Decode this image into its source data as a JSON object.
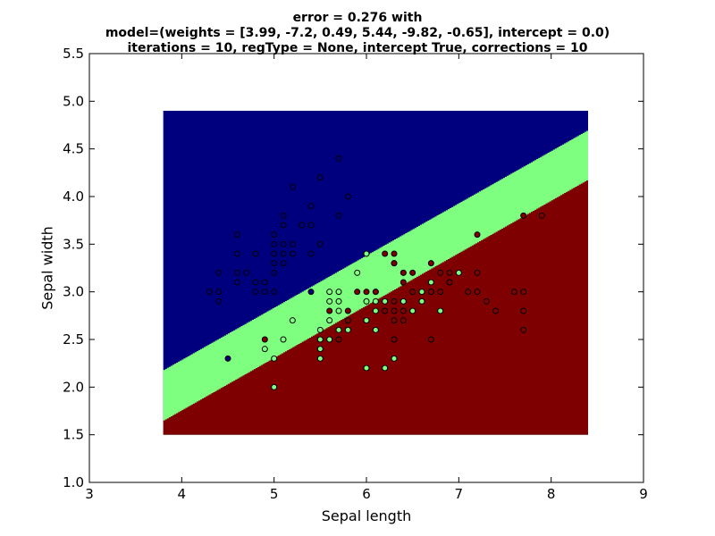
{
  "chart_data": {
    "type": "scatter",
    "title_lines": [
      "error = 0.276 with",
      "model=(weights = [3.99, -7.2, 0.49, 5.44, -9.82, -0.65], intercept = 0.0)",
      "iterations = 10, regType = None, intercept True, corrections = 10"
    ],
    "xlabel": "Sepal length",
    "ylabel": "Sepal width",
    "xlim": [
      3,
      9
    ],
    "ylim": [
      1.0,
      5.5
    ],
    "xticks": [
      "3",
      "4",
      "5",
      "6",
      "7",
      "8",
      "9"
    ],
    "yticks": [
      "1.0",
      "1.5",
      "2.0",
      "2.5",
      "3.0",
      "3.5",
      "4.0",
      "4.5",
      "5.0",
      "5.5"
    ],
    "grid": false,
    "decision_region": {
      "x_range": [
        3.8,
        8.4
      ],
      "y_range": [
        1.5,
        4.9
      ],
      "boundary_low": {
        "left_y": 1.65,
        "right_y": 4.18
      },
      "boundary_high": {
        "left_y": 2.18,
        "right_y": 4.7
      }
    },
    "class_colors": {
      "0": "#00007f",
      "1": "#7fff7f",
      "2": "#7f0000"
    },
    "points": [
      {
        "x": 4.3,
        "y": 3.0,
        "c": 0
      },
      {
        "x": 4.4,
        "y": 2.9,
        "c": 0
      },
      {
        "x": 4.4,
        "y": 3.0,
        "c": 0
      },
      {
        "x": 4.4,
        "y": 3.2,
        "c": 0
      },
      {
        "x": 4.5,
        "y": 2.3,
        "c": 0
      },
      {
        "x": 4.6,
        "y": 3.1,
        "c": 0
      },
      {
        "x": 4.6,
        "y": 3.2,
        "c": 0
      },
      {
        "x": 4.6,
        "y": 3.4,
        "c": 0
      },
      {
        "x": 4.6,
        "y": 3.6,
        "c": 0
      },
      {
        "x": 4.7,
        "y": 3.2,
        "c": 0
      },
      {
        "x": 4.8,
        "y": 3.0,
        "c": 0
      },
      {
        "x": 4.8,
        "y": 3.1,
        "c": 0
      },
      {
        "x": 4.8,
        "y": 3.4,
        "c": 0
      },
      {
        "x": 4.9,
        "y": 3.0,
        "c": 0
      },
      {
        "x": 4.9,
        "y": 3.1,
        "c": 0
      },
      {
        "x": 5.0,
        "y": 3.0,
        "c": 0
      },
      {
        "x": 5.0,
        "y": 3.2,
        "c": 0
      },
      {
        "x": 5.0,
        "y": 3.3,
        "c": 0
      },
      {
        "x": 5.0,
        "y": 3.4,
        "c": 0
      },
      {
        "x": 5.0,
        "y": 3.5,
        "c": 0
      },
      {
        "x": 5.0,
        "y": 3.6,
        "c": 0
      },
      {
        "x": 5.1,
        "y": 3.3,
        "c": 0
      },
      {
        "x": 5.1,
        "y": 3.4,
        "c": 0
      },
      {
        "x": 5.1,
        "y": 3.5,
        "c": 0
      },
      {
        "x": 5.1,
        "y": 3.7,
        "c": 0
      },
      {
        "x": 5.1,
        "y": 3.8,
        "c": 0
      },
      {
        "x": 5.2,
        "y": 3.4,
        "c": 0
      },
      {
        "x": 5.2,
        "y": 3.5,
        "c": 0
      },
      {
        "x": 5.2,
        "y": 4.1,
        "c": 0
      },
      {
        "x": 5.3,
        "y": 3.7,
        "c": 0
      },
      {
        "x": 5.4,
        "y": 3.4,
        "c": 0
      },
      {
        "x": 5.4,
        "y": 3.7,
        "c": 0
      },
      {
        "x": 5.4,
        "y": 3.9,
        "c": 0
      },
      {
        "x": 5.5,
        "y": 3.5,
        "c": 0
      },
      {
        "x": 5.5,
        "y": 4.2,
        "c": 0
      },
      {
        "x": 5.7,
        "y": 3.8,
        "c": 0
      },
      {
        "x": 5.7,
        "y": 4.4,
        "c": 0
      },
      {
        "x": 5.8,
        "y": 4.0,
        "c": 0
      },
      {
        "x": 5.4,
        "y": 3.0,
        "c": 0
      },
      {
        "x": 4.9,
        "y": 2.4,
        "c": 1
      },
      {
        "x": 5.0,
        "y": 2.0,
        "c": 1
      },
      {
        "x": 5.0,
        "y": 2.3,
        "c": 1
      },
      {
        "x": 5.1,
        "y": 2.5,
        "c": 1
      },
      {
        "x": 5.2,
        "y": 2.7,
        "c": 1
      },
      {
        "x": 5.5,
        "y": 2.3,
        "c": 1
      },
      {
        "x": 5.5,
        "y": 2.4,
        "c": 1
      },
      {
        "x": 5.5,
        "y": 2.5,
        "c": 1
      },
      {
        "x": 5.5,
        "y": 2.6,
        "c": 1
      },
      {
        "x": 5.6,
        "y": 2.5,
        "c": 1
      },
      {
        "x": 5.6,
        "y": 2.7,
        "c": 1
      },
      {
        "x": 5.6,
        "y": 2.9,
        "c": 1
      },
      {
        "x": 5.6,
        "y": 3.0,
        "c": 1
      },
      {
        "x": 5.7,
        "y": 2.6,
        "c": 1
      },
      {
        "x": 5.7,
        "y": 2.8,
        "c": 1
      },
      {
        "x": 5.7,
        "y": 2.9,
        "c": 1
      },
      {
        "x": 5.7,
        "y": 3.0,
        "c": 1
      },
      {
        "x": 5.8,
        "y": 2.6,
        "c": 1
      },
      {
        "x": 5.8,
        "y": 2.7,
        "c": 1
      },
      {
        "x": 5.9,
        "y": 3.2,
        "c": 1
      },
      {
        "x": 6.0,
        "y": 2.2,
        "c": 1
      },
      {
        "x": 6.0,
        "y": 2.7,
        "c": 1
      },
      {
        "x": 6.0,
        "y": 2.9,
        "c": 1
      },
      {
        "x": 6.0,
        "y": 3.4,
        "c": 1
      },
      {
        "x": 6.1,
        "y": 2.6,
        "c": 1
      },
      {
        "x": 6.1,
        "y": 2.8,
        "c": 1
      },
      {
        "x": 6.1,
        "y": 2.9,
        "c": 1
      },
      {
        "x": 6.1,
        "y": 3.0,
        "c": 1
      },
      {
        "x": 6.2,
        "y": 2.2,
        "c": 1
      },
      {
        "x": 6.2,
        "y": 2.9,
        "c": 1
      },
      {
        "x": 6.3,
        "y": 2.3,
        "c": 1
      },
      {
        "x": 6.3,
        "y": 2.5,
        "c": 1
      },
      {
        "x": 6.3,
        "y": 3.3,
        "c": 1
      },
      {
        "x": 6.4,
        "y": 2.9,
        "c": 1
      },
      {
        "x": 6.4,
        "y": 3.2,
        "c": 1
      },
      {
        "x": 6.5,
        "y": 2.8,
        "c": 1
      },
      {
        "x": 6.6,
        "y": 2.9,
        "c": 1
      },
      {
        "x": 6.6,
        "y": 3.0,
        "c": 1
      },
      {
        "x": 6.7,
        "y": 3.0,
        "c": 1
      },
      {
        "x": 6.7,
        "y": 3.1,
        "c": 1
      },
      {
        "x": 6.8,
        "y": 2.8,
        "c": 1
      },
      {
        "x": 6.9,
        "y": 3.1,
        "c": 1
      },
      {
        "x": 7.0,
        "y": 3.2,
        "c": 1
      },
      {
        "x": 4.9,
        "y": 2.5,
        "c": 2
      },
      {
        "x": 5.6,
        "y": 2.8,
        "c": 2
      },
      {
        "x": 5.7,
        "y": 2.5,
        "c": 2
      },
      {
        "x": 5.8,
        "y": 2.7,
        "c": 2
      },
      {
        "x": 5.8,
        "y": 2.8,
        "c": 2
      },
      {
        "x": 5.9,
        "y": 3.0,
        "c": 2
      },
      {
        "x": 6.0,
        "y": 3.0,
        "c": 2
      },
      {
        "x": 6.1,
        "y": 3.0,
        "c": 2
      },
      {
        "x": 6.2,
        "y": 2.8,
        "c": 2
      },
      {
        "x": 6.2,
        "y": 3.4,
        "c": 2
      },
      {
        "x": 6.3,
        "y": 2.5,
        "c": 2
      },
      {
        "x": 6.3,
        "y": 2.7,
        "c": 2
      },
      {
        "x": 6.3,
        "y": 2.8,
        "c": 2
      },
      {
        "x": 6.3,
        "y": 2.9,
        "c": 2
      },
      {
        "x": 6.3,
        "y": 3.3,
        "c": 2
      },
      {
        "x": 6.3,
        "y": 3.4,
        "c": 2
      },
      {
        "x": 6.4,
        "y": 2.7,
        "c": 2
      },
      {
        "x": 6.4,
        "y": 2.8,
        "c": 2
      },
      {
        "x": 6.4,
        "y": 3.1,
        "c": 2
      },
      {
        "x": 6.4,
        "y": 3.2,
        "c": 2
      },
      {
        "x": 6.5,
        "y": 3.0,
        "c": 2
      },
      {
        "x": 6.5,
        "y": 3.2,
        "c": 2
      },
      {
        "x": 6.7,
        "y": 2.5,
        "c": 2
      },
      {
        "x": 6.7,
        "y": 3.0,
        "c": 2
      },
      {
        "x": 6.7,
        "y": 3.3,
        "c": 2
      },
      {
        "x": 6.8,
        "y": 3.0,
        "c": 2
      },
      {
        "x": 6.8,
        "y": 3.2,
        "c": 2
      },
      {
        "x": 6.9,
        "y": 3.1,
        "c": 2
      },
      {
        "x": 6.9,
        "y": 3.2,
        "c": 2
      },
      {
        "x": 7.1,
        "y": 3.0,
        "c": 2
      },
      {
        "x": 7.2,
        "y": 3.0,
        "c": 2
      },
      {
        "x": 7.2,
        "y": 3.2,
        "c": 2
      },
      {
        "x": 7.2,
        "y": 3.6,
        "c": 2
      },
      {
        "x": 7.3,
        "y": 2.9,
        "c": 2
      },
      {
        "x": 7.4,
        "y": 2.8,
        "c": 2
      },
      {
        "x": 7.6,
        "y": 3.0,
        "c": 2
      },
      {
        "x": 7.7,
        "y": 2.6,
        "c": 2
      },
      {
        "x": 7.7,
        "y": 2.8,
        "c": 2
      },
      {
        "x": 7.7,
        "y": 3.0,
        "c": 2
      },
      {
        "x": 7.7,
        "y": 3.8,
        "c": 2
      },
      {
        "x": 7.9,
        "y": 3.8,
        "c": 2
      }
    ]
  }
}
